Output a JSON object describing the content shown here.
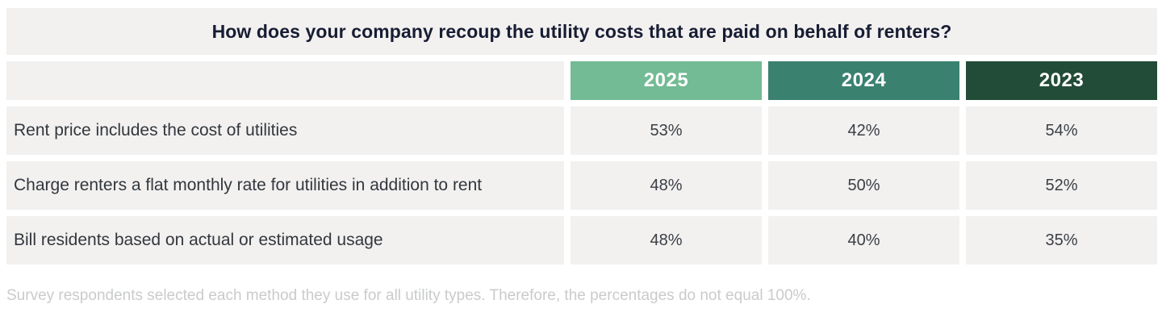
{
  "title": "How does your company recoup the utility costs that are paid on behalf of renters?",
  "colors": {
    "header_2025": "#73bb94",
    "header_2024": "#3a8170",
    "header_2023": "#224c38",
    "band_bg": "#f2f1f0",
    "title_text": "#171d33",
    "footnote_text": "#c9cbcc"
  },
  "table": {
    "year_headers": [
      "2025",
      "2024",
      "2023"
    ],
    "rows": [
      {
        "label": "Rent price includes the cost of utilities",
        "values": [
          "53%",
          "42%",
          "54%"
        ]
      },
      {
        "label": "Charge renters a flat monthly rate for utilities in addition to rent",
        "values": [
          "48%",
          "50%",
          "52%"
        ]
      },
      {
        "label": "Bill residents based on actual or estimated usage",
        "values": [
          "48%",
          "40%",
          "35%"
        ]
      }
    ]
  },
  "footnote": "Survey respondents selected each method they use for all utility types. Therefore, the percentages do not equal 100%.",
  "chart_data": {
    "type": "table",
    "title": "How does your company recoup the utility costs that are paid on behalf of renters?",
    "categories": [
      "Rent price includes the cost of utilities",
      "Charge renters a flat monthly rate for utilities in addition to rent",
      "Bill residents based on actual or estimated usage"
    ],
    "series": [
      {
        "name": "2025",
        "values": [
          53,
          48,
          48
        ]
      },
      {
        "name": "2024",
        "values": [
          42,
          50,
          40
        ]
      },
      {
        "name": "2023",
        "values": [
          54,
          52,
          35
        ]
      }
    ],
    "unit": "%",
    "footnote": "Survey respondents selected each method they use for all utility types. Therefore, the percentages do not equal 100%."
  }
}
